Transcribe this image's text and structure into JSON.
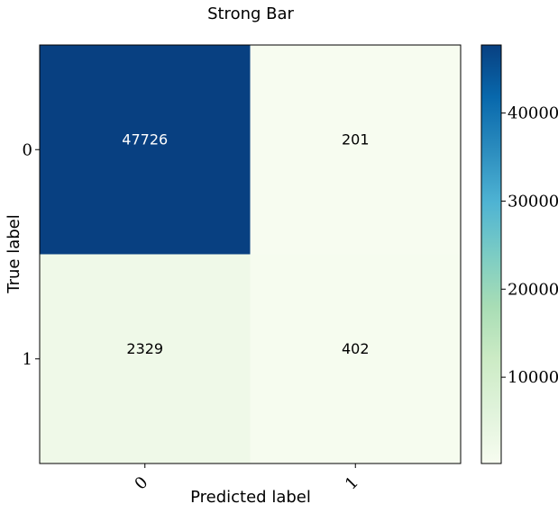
{
  "chart_data": {
    "type": "heatmap",
    "title": "Strong Bar",
    "xlabel": "Predicted label",
    "ylabel": "True label",
    "x_categories": [
      "0",
      "1"
    ],
    "y_categories": [
      "0",
      "1"
    ],
    "values": [
      [
        47726,
        201
      ],
      [
        2329,
        402
      ]
    ],
    "colormap": "GnBu",
    "colorbar": {
      "range": [
        201,
        47726
      ],
      "ticks": [
        10000,
        20000,
        30000,
        40000
      ],
      "tick_labels": [
        "10000",
        "20000",
        "30000",
        "40000"
      ]
    },
    "grid": false
  }
}
